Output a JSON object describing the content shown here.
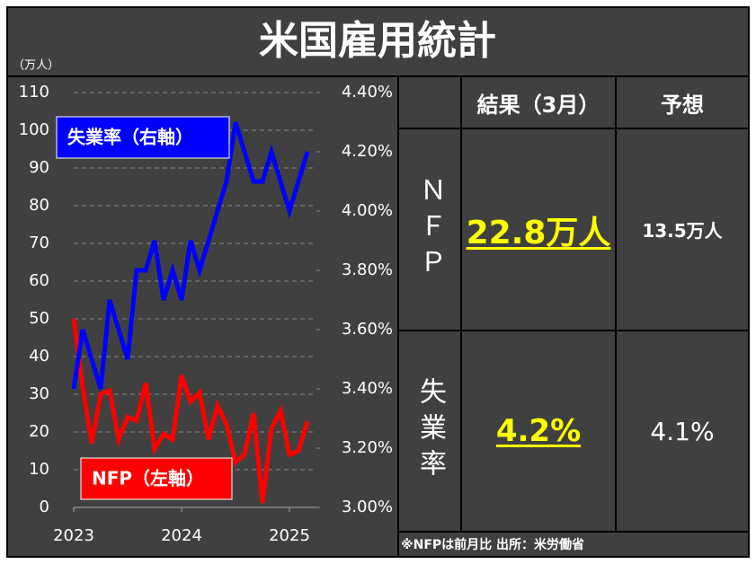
{
  "chart_data": {
    "type": "line",
    "title": "米国雇用統計",
    "y_unit_label": "（万人）",
    "x": [
      2023,
      2023.083,
      2023.167,
      2023.25,
      2023.333,
      2023.417,
      2023.5,
      2023.583,
      2023.667,
      2023.75,
      2023.833,
      2023.917,
      2024,
      2024.083,
      2024.167,
      2024.25,
      2024.333,
      2024.417,
      2024.5,
      2024.583,
      2024.667,
      2024.75,
      2024.833,
      2024.917,
      2025,
      2025.083,
      2025.167
    ],
    "xlim": [
      2023,
      2025.25
    ],
    "xticks": [
      2023,
      2024,
      2025
    ],
    "ylim": [
      0,
      110
    ],
    "yticks": [
      0,
      10,
      20,
      30,
      40,
      50,
      60,
      70,
      80,
      90,
      100,
      110
    ],
    "y2lim": [
      3.0,
      4.4
    ],
    "y2ticks": [
      {
        "value": 3.0,
        "label": "3.00%"
      },
      {
        "value": 3.2,
        "label": "3.20%"
      },
      {
        "value": 3.4,
        "label": "3.40%"
      },
      {
        "value": 3.6,
        "label": "3.60%"
      },
      {
        "value": 3.8,
        "label": "3.80%"
      },
      {
        "value": 4.0,
        "label": "4.00%"
      },
      {
        "value": 4.2,
        "label": "4.20%"
      },
      {
        "value": 4.4,
        "label": "4.40%"
      }
    ],
    "grid": true,
    "series": [
      {
        "name": "NFP（左軸）",
        "color": "#ff0000",
        "axis": "y",
        "values": [
          50,
          32,
          17,
          30,
          31,
          18,
          24,
          23,
          33,
          15.5,
          19.5,
          18,
          35,
          28,
          30.5,
          18,
          27,
          22,
          12,
          14,
          25,
          1.2,
          21,
          25.5,
          14,
          15,
          22.8
        ]
      },
      {
        "name": "失業率（右軸）",
        "color": "#0000ff",
        "axis": "y2",
        "values": [
          3.4,
          3.6,
          3.5,
          3.4,
          3.7,
          3.6,
          3.5,
          3.8,
          3.8,
          3.9,
          3.7,
          3.8,
          3.7,
          3.9,
          3.8,
          3.9,
          4.0,
          4.1,
          4.3,
          4.2,
          4.1,
          4.1,
          4.2,
          4.1,
          4.0,
          4.1,
          4.2
        ]
      }
    ]
  },
  "table": {
    "header": [
      "結果（3月）",
      "予想"
    ],
    "rows": [
      {
        "label": "ＮＦＰ",
        "result": "22.8万人",
        "forecast": "13.5万人"
      },
      {
        "label": "失業率",
        "result": "4.2%",
        "forecast": "4.1%"
      }
    ],
    "note": "※NFPは前月比 出所：米労働省"
  }
}
